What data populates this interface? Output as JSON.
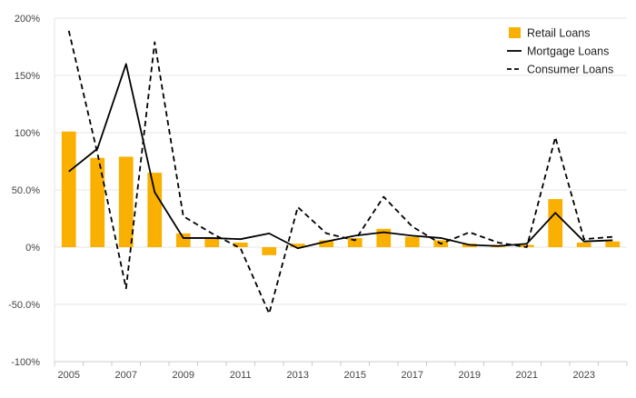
{
  "chart_data": {
    "type": "bar",
    "title": "",
    "xlabel": "",
    "ylabel": "",
    "ylim": [
      -100,
      200
    ],
    "grid": true,
    "legend_position": "top-right",
    "x": [
      2005,
      2006,
      2007,
      2008,
      2009,
      2010,
      2011,
      2012,
      2013,
      2014,
      2015,
      2016,
      2017,
      2018,
      2019,
      2020,
      2021,
      2022,
      2023,
      2024
    ],
    "x_tick_labels": [
      "2005",
      "2007",
      "2009",
      "2011",
      "2013",
      "2015",
      "2017",
      "2019",
      "2021",
      "2023"
    ],
    "y_ticks": [
      {
        "value": 200,
        "label": "200%"
      },
      {
        "value": 150,
        "label": "150%"
      },
      {
        "value": 100,
        "label": "100%"
      },
      {
        "value": 50,
        "label": "50.0%"
      },
      {
        "value": 0,
        "label": "0%"
      },
      {
        "value": -50,
        "label": "-50.0%"
      },
      {
        "value": -100,
        "label": "-100%"
      }
    ],
    "series": [
      {
        "name": "Retail Loans",
        "type": "bar",
        "color": "#F9B000",
        "values": [
          101,
          78,
          79,
          65,
          12,
          8,
          4,
          -7,
          3,
          6,
          8,
          16,
          9,
          6,
          3,
          2,
          2,
          42,
          4,
          5
        ]
      },
      {
        "name": "Mortgage Loans",
        "type": "line",
        "style": "solid",
        "color": "#000000",
        "values": [
          66,
          86,
          160,
          48,
          8,
          8,
          7,
          12,
          -1,
          5,
          10,
          13,
          10,
          8,
          2,
          1,
          3,
          30,
          5,
          6
        ]
      },
      {
        "name": "Consumer Loans",
        "type": "line",
        "style": "dashed",
        "color": "#000000",
        "values": [
          189,
          82,
          -36,
          179,
          27,
          12,
          -1,
          -58,
          35,
          12,
          6,
          44,
          18,
          3,
          13,
          4,
          0,
          96,
          7,
          9
        ]
      }
    ]
  }
}
